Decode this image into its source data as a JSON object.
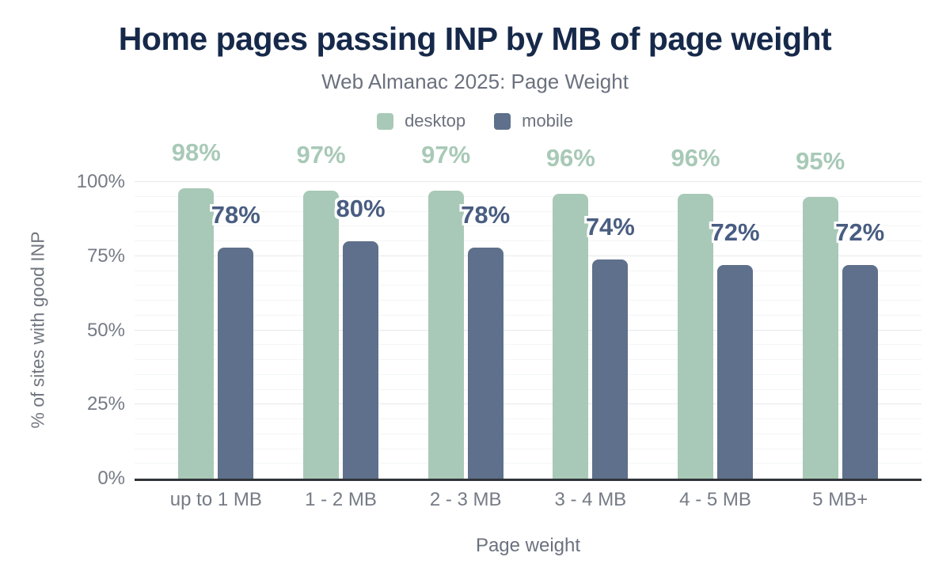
{
  "chart_data": {
    "type": "bar",
    "title": "Home pages passing INP by MB of page weight",
    "subtitle": "Web Almanac 2025: Page Weight",
    "categories": [
      "up to 1 MB",
      "1 - 2 MB",
      "2 - 3 MB",
      "3 - 4 MB",
      "4 - 5 MB",
      "5 MB+"
    ],
    "series": [
      {
        "name": "desktop",
        "color": "#a8c9b7",
        "label_color": "#a8c9b7",
        "values": [
          98,
          97,
          97,
          96,
          96,
          95
        ]
      },
      {
        "name": "mobile",
        "color": "#5e708b",
        "label_color": "#495d81",
        "values": [
          78,
          80,
          78,
          74,
          72,
          72
        ]
      }
    ],
    "xlabel": "Page weight",
    "ylabel": "% of sites with good INP",
    "ylim": [
      0,
      100
    ],
    "yticks": [
      {
        "value": 0,
        "label": "0%"
      },
      {
        "value": 25,
        "label": "25%"
      },
      {
        "value": 50,
        "label": "50%"
      },
      {
        "value": 75,
        "label": "75%"
      },
      {
        "value": 100,
        "label": "100%"
      }
    ],
    "minor_grid_step": 5,
    "major_grid_step": 25,
    "grid": "horizontal",
    "legend_position": "top",
    "value_suffix": "%"
  },
  "colors": {
    "title": "#16294a",
    "muted_text": "#6b717e",
    "tick_text": "#757b85",
    "baseline": "#303439",
    "grid_major": "#e7e8ea",
    "grid_minor": "#f4f5f6"
  }
}
